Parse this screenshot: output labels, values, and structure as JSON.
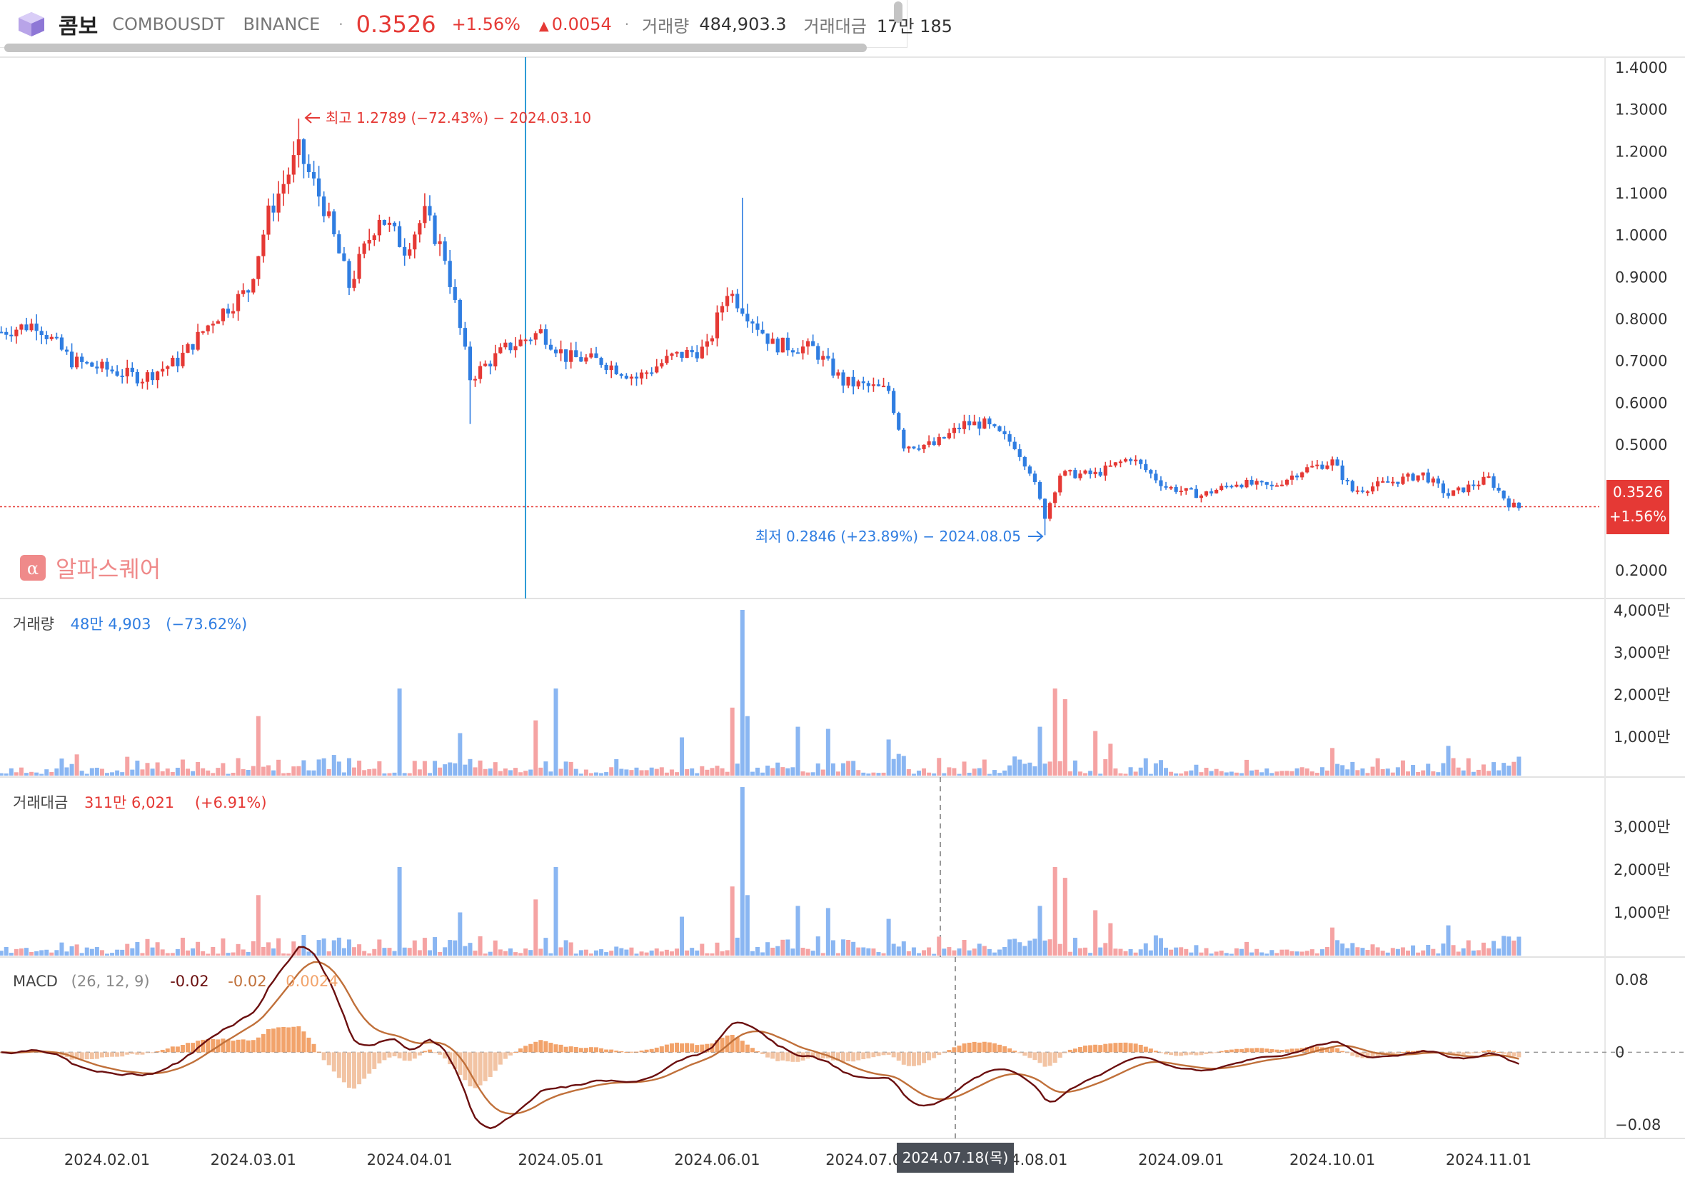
{
  "header": {
    "name": "콤보",
    "symbol": "COMBOUSDT",
    "exchange": "BINANCE",
    "price": "0.3526",
    "change_pct": "+1.56%",
    "change_abs": "0.0054",
    "volume_label": "거래량",
    "volume_value": "484,903.3",
    "amount_label": "거래대금",
    "amount_value": "17만 185"
  },
  "watermark": "알파스퀘어",
  "colors": {
    "up": "#e53935",
    "down": "#2f7de1",
    "macd": "#6b0f0f",
    "signal": "#c0703a",
    "hist": "#f2a36b"
  },
  "chart_data": {
    "type": "candlestick",
    "price_axis": [
      "1.4000",
      "1.3000",
      "1.2000",
      "1.1000",
      "1.0000",
      "0.9000",
      "0.8000",
      "0.7000",
      "0.6000",
      "0.5000",
      "0.2000"
    ],
    "price_range": [
      0.2,
      1.4
    ],
    "last_price_badge": {
      "price": "0.3526",
      "pct": "+1.56%"
    },
    "high_annotation": "최고 1.2789 (−72.43%) − 2024.03.10",
    "low_annotation": "최저 0.2846 (+23.89%) − 2024.08.05",
    "date_axis": [
      "2024.02.01",
      "2024.03.01",
      "2024.04.01",
      "2024.05.01",
      "2024.06.01",
      "2024.07.01",
      "2024.08.01",
      "2024.09.01",
      "2024.10.01",
      "2024.11.01"
    ],
    "crosshair_date": "2024.07.18(목)",
    "price_path": [
      [
        "2024-01-11",
        0.77
      ],
      [
        "2024-01-18",
        0.79
      ],
      [
        "2024-01-25",
        0.7
      ],
      [
        "2024-02-01",
        0.68
      ],
      [
        "2024-02-08",
        0.66
      ],
      [
        "2024-02-15",
        0.7
      ],
      [
        "2024-02-22",
        0.8
      ],
      [
        "2024-02-29",
        0.87
      ],
      [
        "2024-03-04",
        1.05
      ],
      [
        "2024-03-10",
        1.2
      ],
      [
        "2024-03-15",
        1.07
      ],
      [
        "2024-03-20",
        0.88
      ],
      [
        "2024-03-26",
        1.05
      ],
      [
        "2024-03-31",
        0.97
      ],
      [
        "2024-04-04",
        1.05
      ],
      [
        "2024-04-08",
        0.95
      ],
      [
        "2024-04-13",
        0.66
      ],
      [
        "2024-04-20",
        0.73
      ],
      [
        "2024-04-27",
        0.77
      ],
      [
        "2024-05-02",
        0.71
      ],
      [
        "2024-05-09",
        0.7
      ],
      [
        "2024-05-16",
        0.66
      ],
      [
        "2024-05-23",
        0.71
      ],
      [
        "2024-05-30",
        0.73
      ],
      [
        "2024-06-03",
        0.87
      ],
      [
        "2024-06-06",
        0.83
      ],
      [
        "2024-06-12",
        0.74
      ],
      [
        "2024-06-20",
        0.73
      ],
      [
        "2024-06-26",
        0.65
      ],
      [
        "2024-07-05",
        0.63
      ],
      [
        "2024-07-08",
        0.5
      ],
      [
        "2024-07-14",
        0.5
      ],
      [
        "2024-07-20",
        0.55
      ],
      [
        "2024-07-24",
        0.55
      ],
      [
        "2024-07-30",
        0.5
      ],
      [
        "2024-08-02",
        0.44
      ],
      [
        "2024-08-05",
        0.33
      ],
      [
        "2024-08-08",
        0.43
      ],
      [
        "2024-08-15",
        0.43
      ],
      [
        "2024-08-22",
        0.47
      ],
      [
        "2024-08-29",
        0.4
      ],
      [
        "2024-09-05",
        0.38
      ],
      [
        "2024-09-12",
        0.41
      ],
      [
        "2024-09-19",
        0.4
      ],
      [
        "2024-09-25",
        0.44
      ],
      [
        "2024-10-01",
        0.46
      ],
      [
        "2024-10-05",
        0.39
      ],
      [
        "2024-10-12",
        0.41
      ],
      [
        "2024-10-19",
        0.43
      ],
      [
        "2024-10-24",
        0.38
      ],
      [
        "2024-11-01",
        0.42
      ],
      [
        "2024-11-05",
        0.36
      ],
      [
        "2024-11-07",
        0.35
      ]
    ],
    "volume_panel": {
      "label": "거래량",
      "value": "48만 4,903",
      "pct": "(−73.62%)",
      "axis": [
        "4,000만",
        "3,000만",
        "2,000만",
        "1,000만"
      ],
      "max": 4000
    },
    "amount_panel": {
      "label": "거래대금",
      "value": "311만 6,021",
      "pct": "(+6.91%)",
      "axis": [
        "3,000만",
        "2,000만",
        "1,000만"
      ],
      "max": 4000
    },
    "volume_spikes": [
      [
        "2024-03-02",
        1400
      ],
      [
        "2024-03-30",
        2050
      ],
      [
        "2024-04-11",
        1000
      ],
      [
        "2024-04-26",
        1300
      ],
      [
        "2024-04-30",
        2050
      ],
      [
        "2024-05-25",
        900
      ],
      [
        "2024-06-04",
        1600
      ],
      [
        "2024-06-06",
        3900
      ],
      [
        "2024-06-07",
        1400
      ],
      [
        "2024-06-17",
        1150
      ],
      [
        "2024-06-23",
        1100
      ],
      [
        "2024-07-05",
        850
      ],
      [
        "2024-08-04",
        1150
      ],
      [
        "2024-08-07",
        2050
      ],
      [
        "2024-08-09",
        1800
      ],
      [
        "2024-08-15",
        1050
      ],
      [
        "2024-08-18",
        750
      ],
      [
        "2024-10-01",
        650
      ],
      [
        "2024-10-24",
        700
      ]
    ],
    "macd_panel": {
      "label": "MACD",
      "params": "(26, 12, 9)",
      "macd": "-0.02",
      "signal": "-0.02",
      "hist": "0.0024",
      "axis": [
        "0.08",
        "0",
        "−0.08"
      ],
      "range": [
        -0.095,
        0.105
      ]
    }
  }
}
